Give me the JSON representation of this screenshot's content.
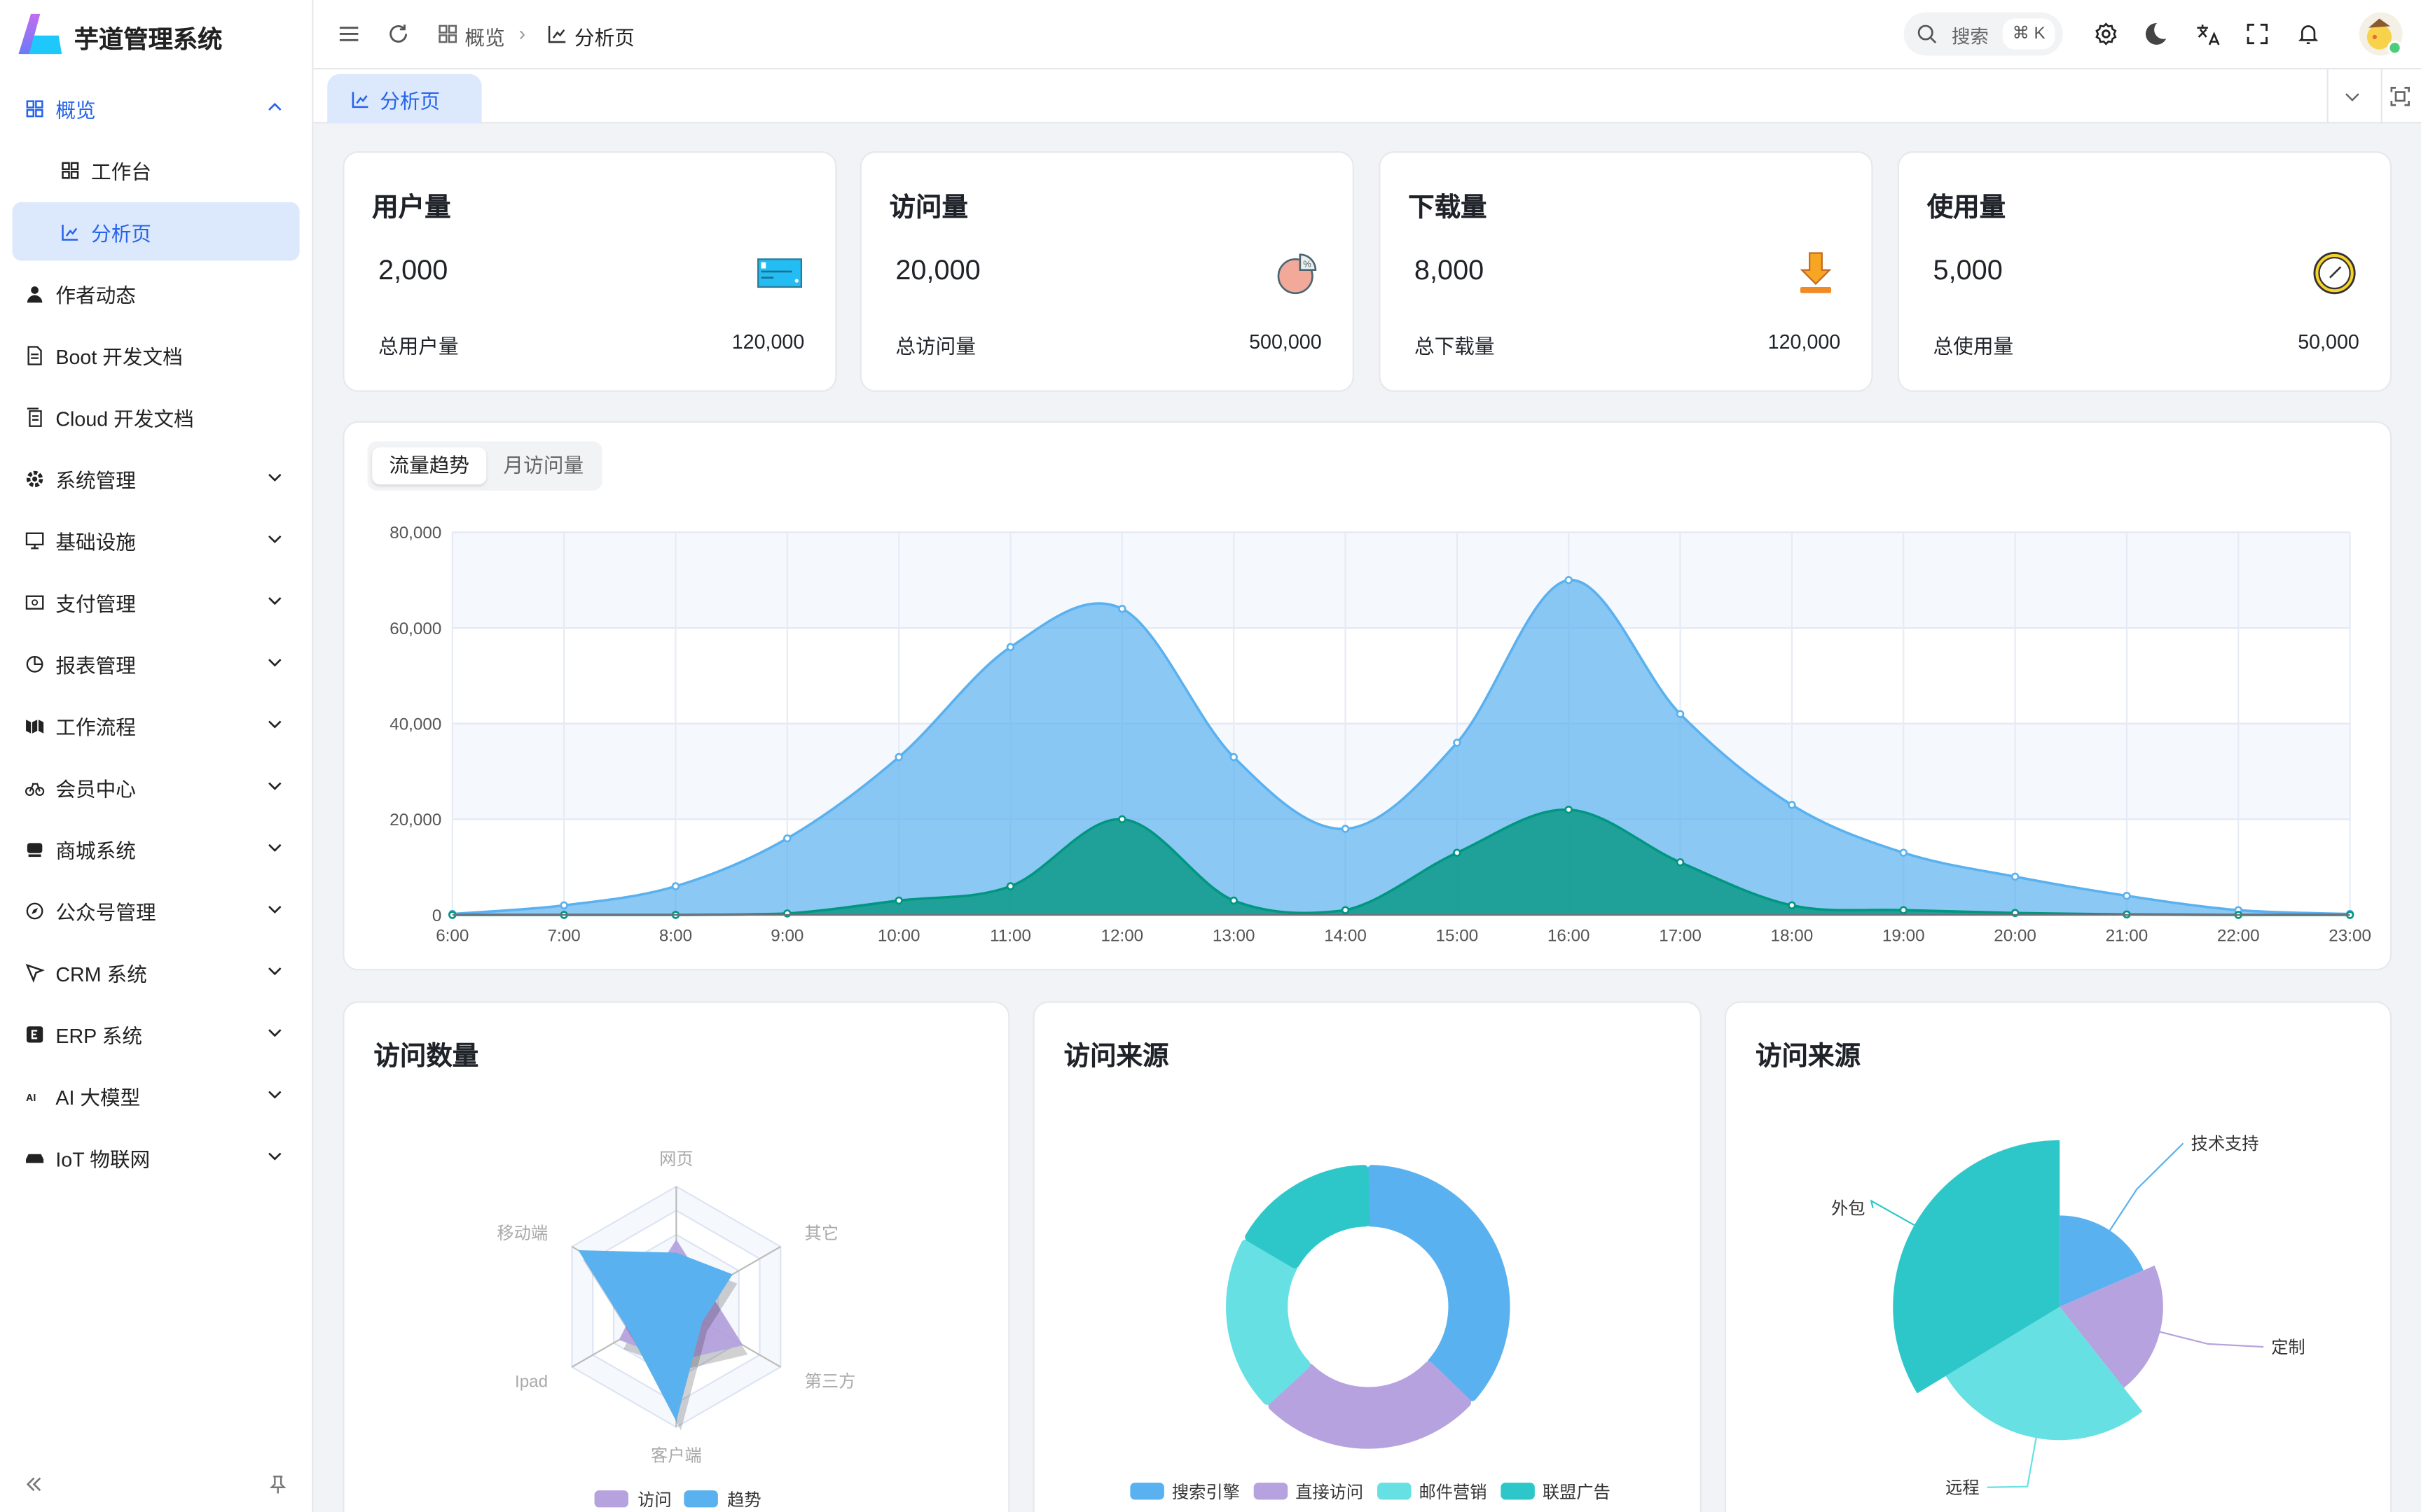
{
  "app": {
    "title": "芋道管理系统"
  },
  "sidebar": {
    "items": [
      {
        "label": "概览",
        "icon": "grid-icon",
        "state": "open"
      },
      {
        "label": "工作台",
        "icon": "grid-icon",
        "sub": true
      },
      {
        "label": "分析页",
        "icon": "chart-line-icon",
        "sub": true,
        "active": true
      },
      {
        "label": "作者动态",
        "icon": "user-icon"
      },
      {
        "label": "Boot 开发文档",
        "icon": "document-icon"
      },
      {
        "label": "Cloud 开发文档",
        "icon": "documents-icon"
      },
      {
        "label": "系统管理",
        "icon": "gear-icon",
        "chevron": true
      },
      {
        "label": "基础设施",
        "icon": "monitor-icon",
        "chevron": true
      },
      {
        "label": "支付管理",
        "icon": "payment-icon",
        "chevron": true
      },
      {
        "label": "报表管理",
        "icon": "pie-icon",
        "chevron": true
      },
      {
        "label": "工作流程",
        "icon": "workflow-icon",
        "chevron": true
      },
      {
        "label": "会员中心",
        "icon": "bike-icon",
        "chevron": true
      },
      {
        "label": "商城系统",
        "icon": "shop-icon",
        "chevron": true
      },
      {
        "label": "公众号管理",
        "icon": "compass-icon",
        "chevron": true
      },
      {
        "label": "CRM 系统",
        "icon": "crm-icon",
        "chevron": true
      },
      {
        "label": "ERP 系统",
        "icon": "erp-icon",
        "chevron": true
      },
      {
        "label": "AI 大模型",
        "icon": "ai-icon",
        "chevron": true
      },
      {
        "label": "IoT 物联网",
        "icon": "iot-icon",
        "chevron": true
      }
    ]
  },
  "header": {
    "breadcrumb": [
      "概览",
      "分析页"
    ],
    "search_placeholder": "搜索",
    "search_shortcut": "⌘ K"
  },
  "tabs": [
    {
      "label": "分析页",
      "active": true
    }
  ],
  "stats": [
    {
      "title": "用户量",
      "value": "2,000",
      "total_label": "总用户量",
      "total": "120,000",
      "icon": "credit-card-icon"
    },
    {
      "title": "访问量",
      "value": "20,000",
      "total_label": "总访问量",
      "total": "500,000",
      "icon": "pie-chart-icon"
    },
    {
      "title": "下载量",
      "value": "8,000",
      "total_label": "总下载量",
      "total": "120,000",
      "icon": "download-icon"
    },
    {
      "title": "使用量",
      "value": "5,000",
      "total_label": "总使用量",
      "total": "50,000",
      "icon": "clock-icon"
    }
  ],
  "trend": {
    "tabs": [
      "流量趋势",
      "月访问量"
    ],
    "active_tab": "流量趋势"
  },
  "chart_data": [
    {
      "type": "area",
      "x": [
        "6:00",
        "7:00",
        "8:00",
        "9:00",
        "10:00",
        "11:00",
        "12:00",
        "13:00",
        "14:00",
        "15:00",
        "16:00",
        "17:00",
        "18:00",
        "19:00",
        "20:00",
        "21:00",
        "22:00",
        "23:00"
      ],
      "ylim": [
        0,
        80000
      ],
      "yticks": [
        "0",
        "20,000",
        "40,000",
        "60,000",
        "80,000"
      ],
      "grid": true,
      "colors": [
        "#5ab1ef",
        "#019680"
      ],
      "series": [
        {
          "values": [
            200,
            2000,
            6000,
            16000,
            33000,
            56000,
            64000,
            33000,
            18000,
            36000,
            70000,
            42000,
            23000,
            13000,
            8000,
            4000,
            1000,
            200
          ]
        },
        {
          "values": [
            0,
            0,
            0,
            300,
            3000,
            6000,
            20000,
            3000,
            1000,
            13000,
            22000,
            11000,
            2000,
            1000,
            400,
            100,
            0,
            0
          ]
        }
      ]
    },
    {
      "type": "radar",
      "title": "访问数量",
      "indicators": [
        "网页",
        "移动端",
        "Ipad",
        "客户端",
        "第三方",
        "其它"
      ],
      "max": 100,
      "series": [
        {
          "name": "访问",
          "color": "#b6a2de",
          "values": [
            56,
            30,
            55,
            45,
            64,
            30
          ]
        },
        {
          "name": "趋势",
          "color": "#5ab1ef",
          "values": [
            45,
            94,
            44,
            95,
            25,
            54
          ]
        }
      ],
      "legend": "bottom"
    },
    {
      "type": "pie",
      "title": "访问来源",
      "donut": true,
      "categories": [
        "搜索引擎",
        "直接访问",
        "邮件营销",
        "联盟广告"
      ],
      "values": [
        1048,
        735,
        580,
        484
      ],
      "colors": [
        "#5ab1ef",
        "#b6a2de",
        "#67e0e3",
        "#2ec7c9"
      ],
      "legend": "bottom"
    },
    {
      "type": "pie",
      "title": "访问来源",
      "rose": "radius",
      "categories": [
        "技术支持",
        "定制",
        "远程",
        "外包"
      ],
      "values": [
        274,
        310,
        400,
        500
      ],
      "colors": [
        "#5ab1ef",
        "#b6a2de",
        "#67e0e3",
        "#2ec7c9"
      ]
    }
  ]
}
